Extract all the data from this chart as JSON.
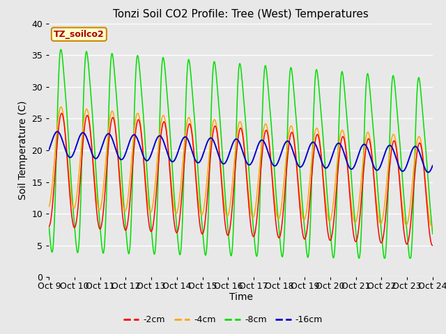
{
  "title": "Tonzi Soil CO2 Profile: Tree (West) Temperatures",
  "xlabel": "Time",
  "ylabel": "Soil Temperature (C)",
  "x_tick_labels": [
    "Oct 9",
    "Oct 10",
    "Oct 11",
    "Oct 12",
    "Oct 13",
    "Oct 14",
    "Oct 15",
    "Oct 16",
    "Oct 17",
    "Oct 18",
    "Oct 19",
    "Oct 20",
    "Oct 21",
    "Oct 22",
    "Oct 23",
    "Oct 24"
  ],
  "ylim": [
    0,
    40
  ],
  "bg_color": "#e8e8e8",
  "fig_color": "#e8e8e8",
  "grid_color": "#ffffff",
  "legend_label": "TZ_soilco2",
  "legend_box_face": "#ffffcc",
  "legend_box_edge": "#cc8800",
  "legend_text_color": "#aa0000",
  "colors": {
    "2cm": "#ff0000",
    "4cm": "#ffa500",
    "8cm": "#00dd00",
    "16cm": "#0000cc"
  },
  "labels": {
    "2cm": "-2cm",
    "4cm": "-4cm",
    "8cm": "-8cm",
    "16cm": "-16cm"
  },
  "n_days": 15,
  "pts_per_day": 144
}
